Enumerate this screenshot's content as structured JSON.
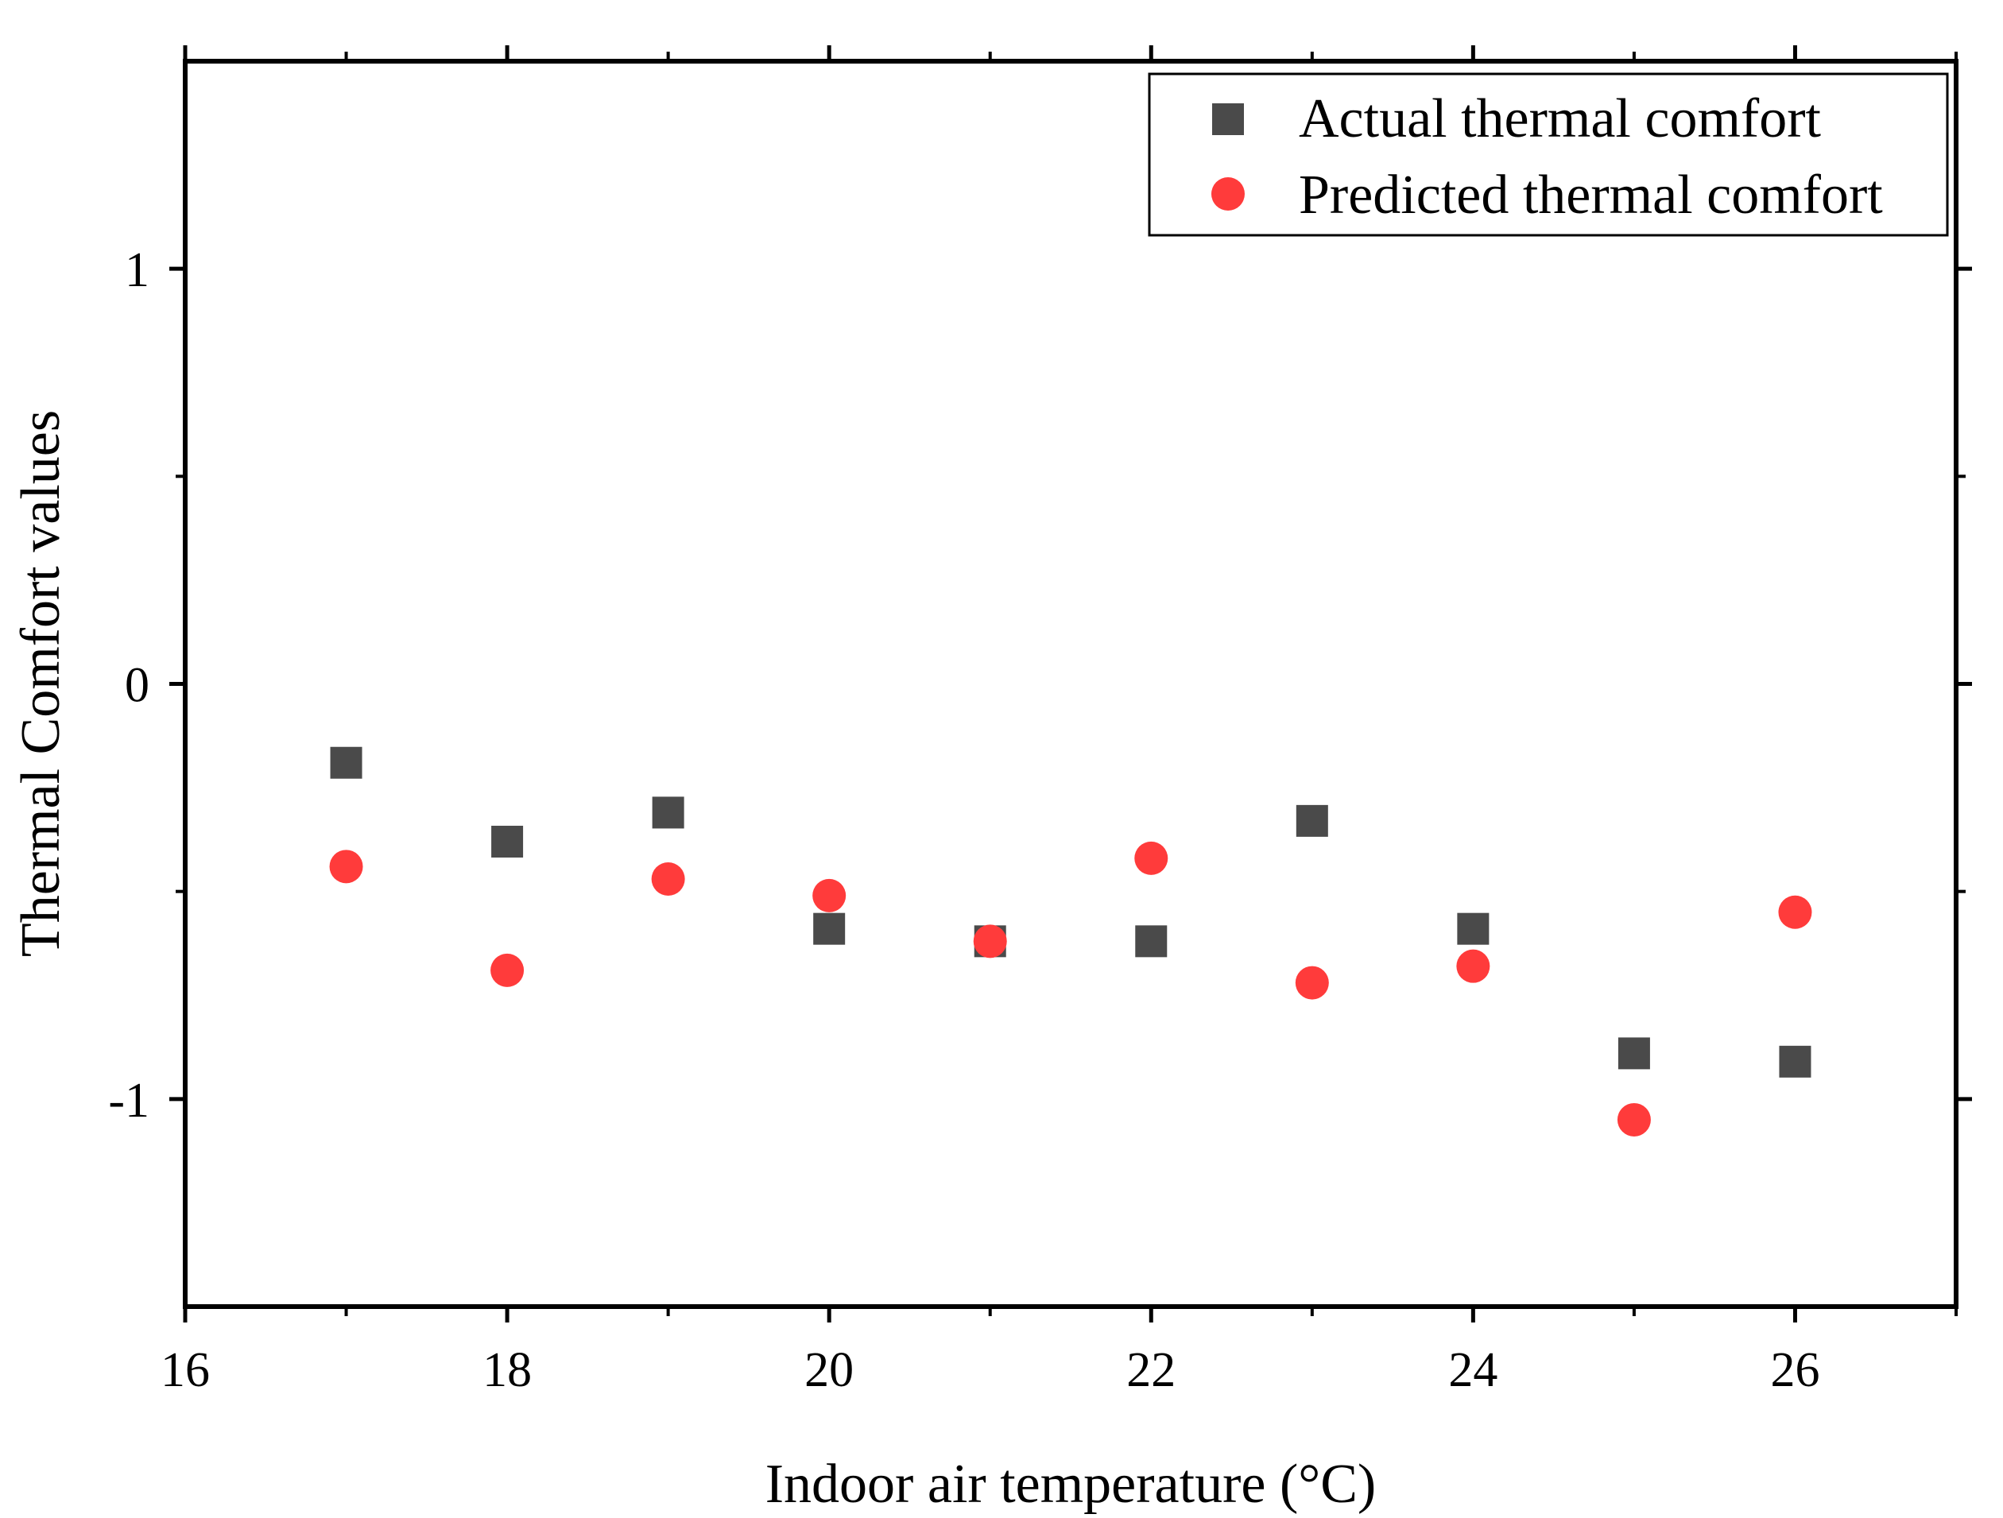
{
  "chart_data": {
    "type": "scatter",
    "title": "",
    "xlabel": "Indoor air temperature (°C)",
    "ylabel": "Thermal Comfort values",
    "xlim": [
      16,
      27
    ],
    "ylim": [
      -1.5,
      1.5
    ],
    "x_ticks": [
      16,
      18,
      20,
      22,
      24,
      26
    ],
    "x_tick_labels": [
      "16",
      "18",
      "20",
      "22",
      "24",
      "26"
    ],
    "x_minor_ticks": [
      17,
      19,
      21,
      23,
      25,
      27
    ],
    "y_ticks": [
      -1,
      0,
      1
    ],
    "y_tick_labels": [
      "-1",
      "0",
      "1"
    ],
    "y_minor_ticks": [
      -0.5,
      0.5
    ],
    "grid": false,
    "legend_position": "top-right",
    "series": [
      {
        "name": "Actual thermal comfort",
        "marker": "square",
        "color": "#4a4a4a",
        "x": [
          17,
          18,
          19,
          20,
          21,
          22,
          23,
          24,
          25,
          26
        ],
        "y": [
          -0.19,
          -0.38,
          -0.31,
          -0.59,
          -0.62,
          -0.62,
          -0.33,
          -0.59,
          -0.89,
          -0.91
        ]
      },
      {
        "name": "Predicted thermal comfort",
        "marker": "circle",
        "color": "#ff3b3b",
        "x": [
          17,
          18,
          19,
          20,
          21,
          22,
          23,
          24,
          25,
          26
        ],
        "y": [
          -0.44,
          -0.69,
          -0.47,
          -0.51,
          -0.62,
          -0.42,
          -0.72,
          -0.68,
          -1.05,
          -0.55
        ]
      }
    ]
  }
}
